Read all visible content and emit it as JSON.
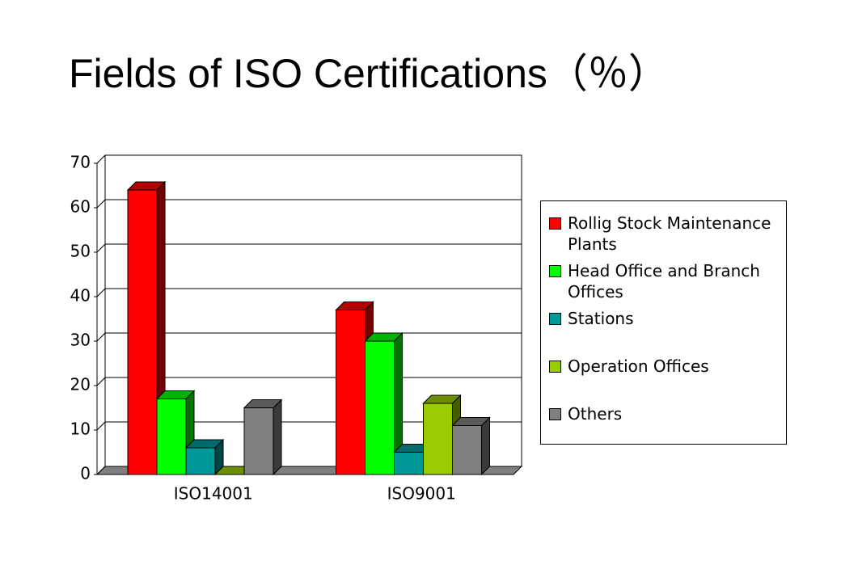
{
  "chart_data": {
    "type": "bar3d",
    "title": "Fields of ISO Certifications（％）",
    "categories": [
      "ISO14001",
      "ISO9001"
    ],
    "series": [
      {
        "name": "Rollig Stock Maintenance Plants",
        "color": "#ff0000",
        "values": [
          64,
          37
        ]
      },
      {
        "name": "Head Office and Branch Offices",
        "color": "#00ff00",
        "values": [
          17,
          30
        ]
      },
      {
        "name": "Stations",
        "color": "#009999",
        "values": [
          6,
          5
        ]
      },
      {
        "name": "Operation Offices",
        "color": "#99cc00",
        "values": [
          0,
          16
        ]
      },
      {
        "name": "Others",
        "color": "#808080",
        "values": [
          15,
          11
        ]
      }
    ],
    "ylim": [
      0,
      70
    ],
    "yticks": [
      0,
      10,
      20,
      30,
      40,
      50,
      60,
      70
    ],
    "grid": true,
    "legend": "right"
  }
}
